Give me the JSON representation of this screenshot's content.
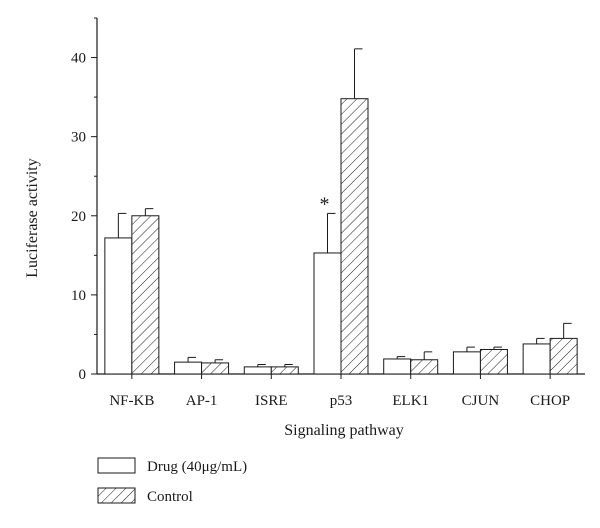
{
  "chart_data": {
    "type": "bar",
    "xlabel": "Signaling pathway",
    "ylabel": "Luciferase activity",
    "ylim": [
      0,
      45
    ],
    "yticks": [
      0,
      10,
      20,
      30,
      40
    ],
    "categories": [
      "NF-KB",
      "AP-1",
      "ISRE",
      "p53",
      "ELK1",
      "CJUN",
      "CHOP"
    ],
    "series": [
      {
        "name": "Drug (40μg/mL)",
        "pattern": "open",
        "values": [
          17.2,
          1.5,
          0.9,
          15.3,
          1.9,
          2.8,
          3.8
        ],
        "errors": [
          3.1,
          0.6,
          0.3,
          5.0,
          0.3,
          0.6,
          0.7
        ]
      },
      {
        "name": "Control",
        "pattern": "hatched",
        "values": [
          20.0,
          1.4,
          0.9,
          34.8,
          1.8,
          3.1,
          4.5
        ],
        "errors": [
          0.9,
          0.4,
          0.3,
          6.3,
          1.0,
          0.3,
          1.9
        ]
      }
    ],
    "annotations": [
      {
        "category": "p53",
        "series": 0,
        "text": "*"
      }
    ],
    "legend_position": "bottom-left",
    "bar_color": "#ffffff",
    "line_color": "#1a1a1a"
  }
}
